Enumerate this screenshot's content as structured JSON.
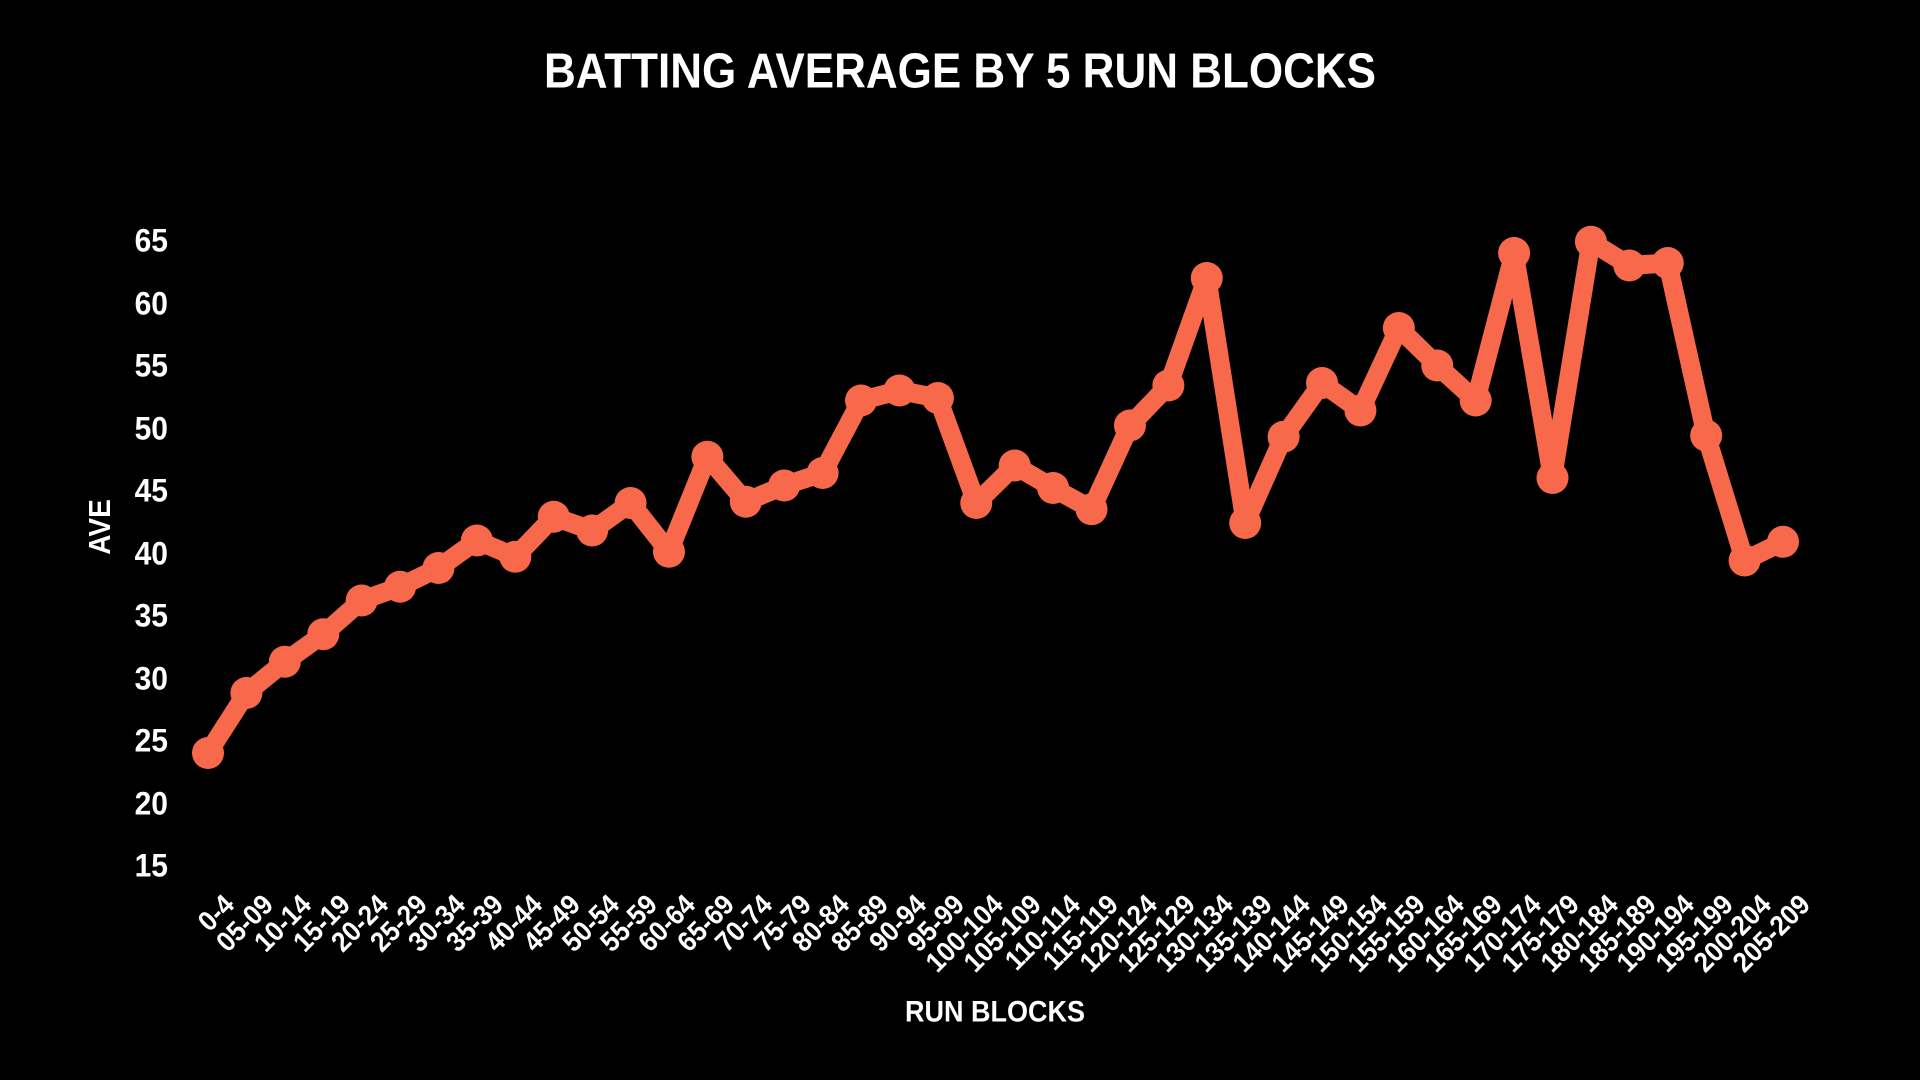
{
  "chart_data": {
    "type": "line",
    "title": "BATTING AVERAGE BY 5 RUN BLOCKS",
    "xlabel": "RUN BLOCKS",
    "ylabel": "AVE",
    "ylim": [
      15,
      65
    ],
    "y_ticks": [
      15,
      20,
      25,
      30,
      35,
      40,
      45,
      50,
      55,
      60,
      65
    ],
    "grid": false,
    "legend_position": "none",
    "line_color": "#F8694C",
    "marker": "circle",
    "background_color": "#000000",
    "text_color": "#FFFFFF",
    "categories": [
      "0-4",
      "05-09",
      "10-14",
      "15-19",
      "20-24",
      "25-29",
      "30-34",
      "35-39",
      "40-44",
      "45-49",
      "50-54",
      "55-59",
      "60-64",
      "65-69",
      "70-74",
      "75-79",
      "80-84",
      "85-89",
      "90-94",
      "95-99",
      "100-104",
      "105-109",
      "110-114",
      "115-119",
      "120-124",
      "125-129",
      "130-134",
      "135-139",
      "140-144",
      "145-149",
      "150-154",
      "155-159",
      "160-164",
      "165-169",
      "170-174",
      "175-179",
      "180-184",
      "185-189",
      "190-194",
      "195-199",
      "200-204",
      "205-209"
    ],
    "series": [
      {
        "name": "AVE",
        "values": [
          24.2,
          29.0,
          31.5,
          33.7,
          36.4,
          37.5,
          39.0,
          41.2,
          39.9,
          43.1,
          42.0,
          44.2,
          40.3,
          47.9,
          44.3,
          45.6,
          46.6,
          52.4,
          53.2,
          52.6,
          44.2,
          47.2,
          45.4,
          43.7,
          50.4,
          53.6,
          62.2,
          42.6,
          49.5,
          53.8,
          51.6,
          58.2,
          55.2,
          52.4,
          64.2,
          46.2,
          65.1,
          63.2,
          63.4,
          49.6,
          39.6,
          41.1
        ]
      }
    ]
  }
}
